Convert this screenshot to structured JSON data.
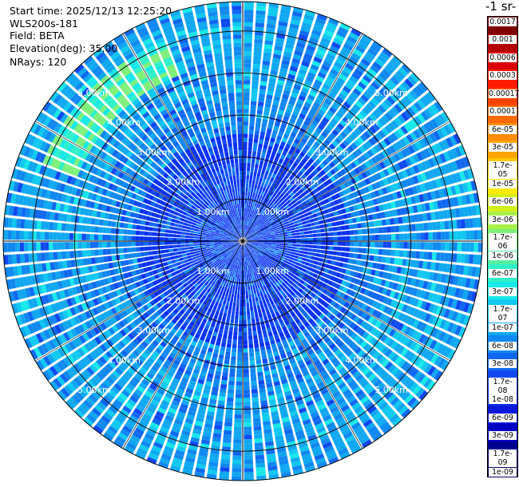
{
  "info": {
    "start_time": "Start time: 2025/12/13 12:25:20",
    "instrument": "WLS200s-181",
    "field": "Field: BETA",
    "elevation": "Elevation(deg): 35.00",
    "nrays": "NRays: 120"
  },
  "colorbar": {
    "title": "-1 sr-",
    "ticks": [
      "0.0017",
      "0.001",
      "0.0006",
      "0.0003",
      "0.00017",
      "0.0001",
      "6e-05",
      "3e-05",
      "1.7e-05",
      "1e-05",
      "6e-06",
      "3e-06",
      "1.7e-06",
      "1e-06",
      "6e-07",
      "3e-07",
      "1.7e-07",
      "1e-07",
      "6e-08",
      "3e-08",
      "1.7e-08",
      "1e-08",
      "6e-09",
      "3e-09",
      "1.7e-09",
      "1e-09"
    ],
    "colors": [
      "#7f0000",
      "#b50000",
      "#d90000",
      "#ff1a00",
      "#ff4500",
      "#ff6a00",
      "#ff8c00",
      "#ffa500",
      "#ffc800",
      "#ffeb00",
      "#d4f01a",
      "#a8f04a",
      "#7ef07a",
      "#55f0a0",
      "#30f0c8",
      "#18e8e8",
      "#10c8f0",
      "#10a8f0",
      "#1088f0",
      "#1068f0",
      "#1048f0",
      "#0830f0",
      "#0818d8",
      "#0000c0",
      "#000090",
      "#000060"
    ]
  },
  "chart_data": {
    "type": "heatmap",
    "subtype": "polar PPI scan",
    "rays": 120,
    "range_rings_km": [
      1,
      2,
      3,
      4,
      5
    ],
    "range_labels": [
      "1.00km",
      "2.00km",
      "3.00km",
      "4.00km",
      "5.00km"
    ],
    "max_range_km": 5.7,
    "grid": true,
    "legend": "right",
    "dominant_level": "1e-07 to 3e-08",
    "feature_note": "enhanced backscatter band at about 4.3-5.0 km toward the north-west"
  }
}
